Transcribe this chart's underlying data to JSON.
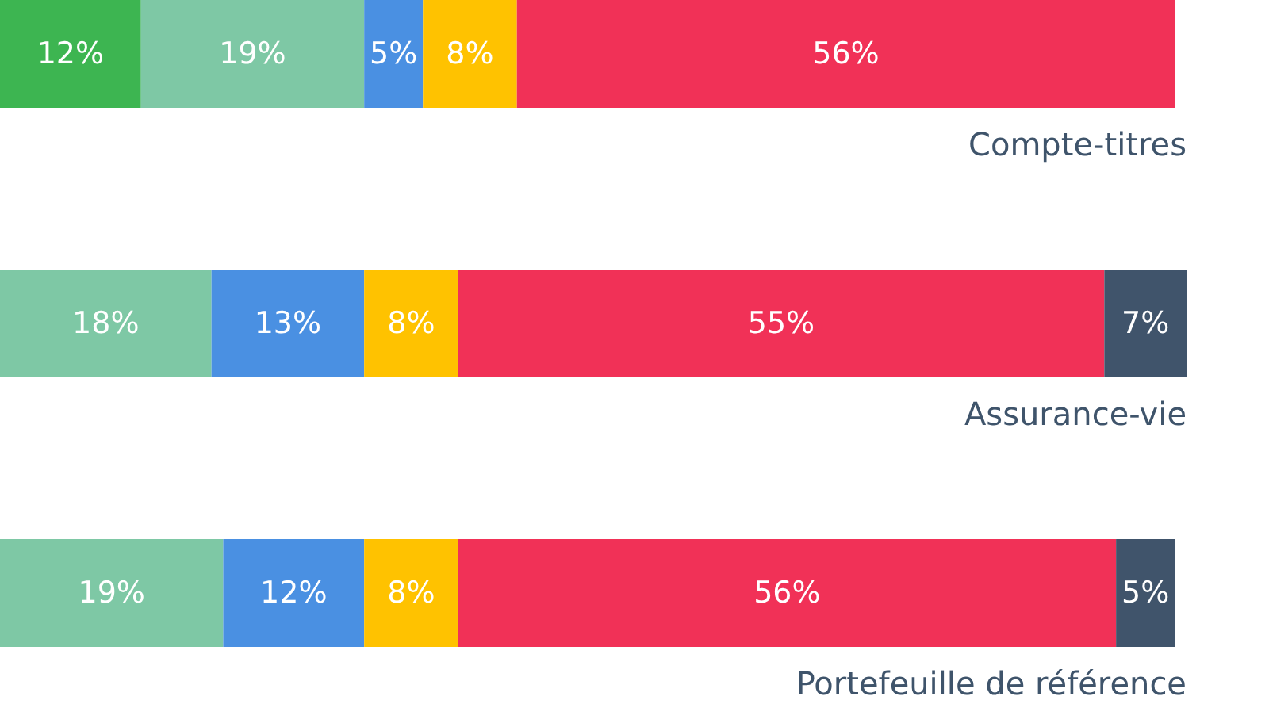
{
  "chart_data": {
    "type": "bar",
    "orientation": "horizontal",
    "stacked": true,
    "categories": [
      "Compte-titres",
      "Assurance-vie",
      "Portefeuille de référence"
    ],
    "series": [
      {
        "color": "#3db551",
        "values": [
          12,
          null,
          null
        ],
        "value_labels": [
          "12%",
          null,
          null
        ]
      },
      {
        "color": "#7ec8a5",
        "values": [
          19,
          18,
          19
        ],
        "value_labels": [
          "19%",
          "18%",
          "19%"
        ]
      },
      {
        "color": "#4a90e2",
        "values": [
          5,
          13,
          12
        ],
        "value_labels": [
          "5%",
          "13%",
          "12%"
        ]
      },
      {
        "color": "#ffc200",
        "values": [
          8,
          8,
          8
        ],
        "value_labels": [
          "8%",
          "8%",
          "8%"
        ]
      },
      {
        "color": "#f13157",
        "values": [
          56,
          55,
          56
        ],
        "value_labels": [
          "56%",
          "55%",
          "56%"
        ]
      },
      {
        "color": "#40546b",
        "values": [
          null,
          7,
          5
        ],
        "value_labels": [
          null,
          "7%",
          "5%"
        ]
      }
    ]
  }
}
